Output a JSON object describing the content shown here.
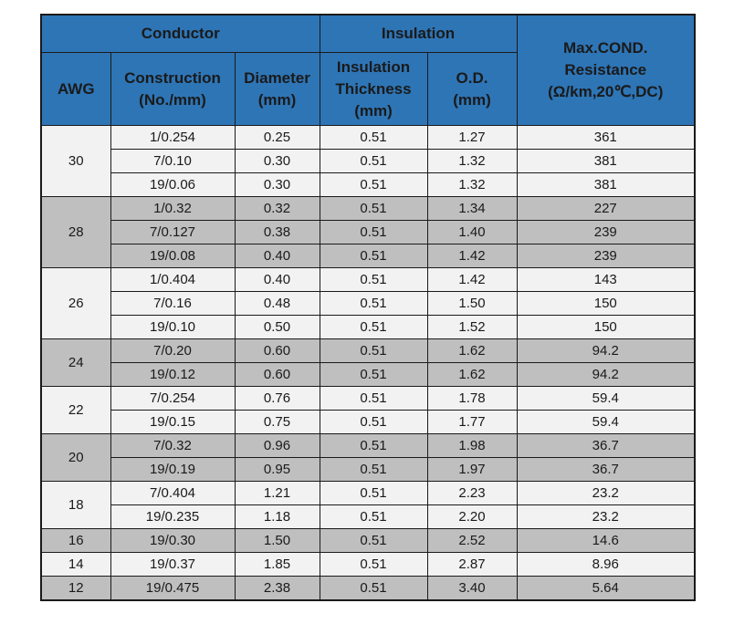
{
  "header": {
    "conductor": "Conductor",
    "insulation": "Insulation",
    "resistance": [
      "Max.COND.",
      "Resistance",
      "(Ω/km,20℃,DC)"
    ],
    "awg": "AWG",
    "construction": [
      "Construction",
      "(No./mm)"
    ],
    "diameter": [
      "Diameter",
      "(mm)"
    ],
    "thickness": [
      "Insulation",
      "Thickness",
      "(mm)"
    ],
    "od": [
      "O.D.",
      "(mm)"
    ]
  },
  "colors": {
    "header_bg": "#2e75b6",
    "row_light": "#f2f2f2",
    "row_dark": "#bfbfbf"
  },
  "groups": [
    {
      "awg": "30",
      "rows": [
        {
          "construction": "1/0.254",
          "diameter": "0.25",
          "thickness": "0.51",
          "od": "1.27",
          "resistance": "361"
        },
        {
          "construction": "7/0.10",
          "diameter": "0.30",
          "thickness": "0.51",
          "od": "1.32",
          "resistance": "381"
        },
        {
          "construction": "19/0.06",
          "diameter": "0.30",
          "thickness": "0.51",
          "od": "1.32",
          "resistance": "381"
        }
      ]
    },
    {
      "awg": "28",
      "rows": [
        {
          "construction": "1/0.32",
          "diameter": "0.32",
          "thickness": "0.51",
          "od": "1.34",
          "resistance": "227"
        },
        {
          "construction": "7/0.127",
          "diameter": "0.38",
          "thickness": "0.51",
          "od": "1.40",
          "resistance": "239"
        },
        {
          "construction": "19/0.08",
          "diameter": "0.40",
          "thickness": "0.51",
          "od": "1.42",
          "resistance": "239"
        }
      ]
    },
    {
      "awg": "26",
      "rows": [
        {
          "construction": "1/0.404",
          "diameter": "0.40",
          "thickness": "0.51",
          "od": "1.42",
          "resistance": "143"
        },
        {
          "construction": "7/0.16",
          "diameter": "0.48",
          "thickness": "0.51",
          "od": "1.50",
          "resistance": "150"
        },
        {
          "construction": "19/0.10",
          "diameter": "0.50",
          "thickness": "0.51",
          "od": "1.52",
          "resistance": "150"
        }
      ]
    },
    {
      "awg": "24",
      "rows": [
        {
          "construction": "7/0.20",
          "diameter": "0.60",
          "thickness": "0.51",
          "od": "1.62",
          "resistance": "94.2"
        },
        {
          "construction": "19/0.12",
          "diameter": "0.60",
          "thickness": "0.51",
          "od": "1.62",
          "resistance": "94.2"
        }
      ]
    },
    {
      "awg": "22",
      "rows": [
        {
          "construction": "7/0.254",
          "diameter": "0.76",
          "thickness": "0.51",
          "od": "1.78",
          "resistance": "59.4"
        },
        {
          "construction": "19/0.15",
          "diameter": "0.75",
          "thickness": "0.51",
          "od": "1.77",
          "resistance": "59.4"
        }
      ]
    },
    {
      "awg": "20",
      "rows": [
        {
          "construction": "7/0.32",
          "diameter": "0.96",
          "thickness": "0.51",
          "od": "1.98",
          "resistance": "36.7"
        },
        {
          "construction": "19/0.19",
          "diameter": "0.95",
          "thickness": "0.51",
          "od": "1.97",
          "resistance": "36.7"
        }
      ]
    },
    {
      "awg": "18",
      "rows": [
        {
          "construction": "7/0.404",
          "diameter": "1.21",
          "thickness": "0.51",
          "od": "2.23",
          "resistance": "23.2"
        },
        {
          "construction": "19/0.235",
          "diameter": "1.18",
          "thickness": "0.51",
          "od": "2.20",
          "resistance": "23.2"
        }
      ]
    },
    {
      "awg": "16",
      "rows": [
        {
          "construction": "19/0.30",
          "diameter": "1.50",
          "thickness": "0.51",
          "od": "2.52",
          "resistance": "14.6"
        }
      ]
    },
    {
      "awg": "14",
      "rows": [
        {
          "construction": "19/0.37",
          "diameter": "1.85",
          "thickness": "0.51",
          "od": "2.87",
          "resistance": "8.96"
        }
      ]
    },
    {
      "awg": "12",
      "rows": [
        {
          "construction": "19/0.475",
          "diameter": "2.38",
          "thickness": "0.51",
          "od": "3.40",
          "resistance": "5.64"
        }
      ]
    }
  ]
}
